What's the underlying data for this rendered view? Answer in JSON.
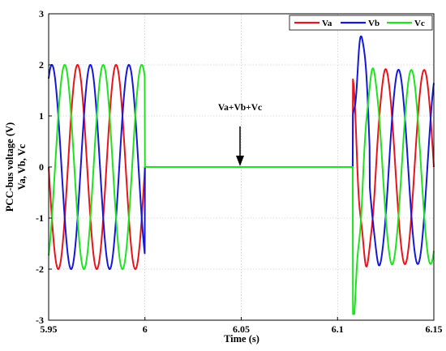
{
  "chart_data": {
    "type": "line",
    "xlabel": "Time (s)",
    "ylabel_lines": [
      "PCC-bus voltage (V)",
      "Va, Vb, Vc"
    ],
    "xlim": [
      5.95,
      6.15
    ],
    "ylim": [
      -3,
      3
    ],
    "xticks": [
      "5.95",
      "6",
      "6.05",
      "6.1",
      "6.15"
    ],
    "yticks": [
      "-3",
      "-2",
      "-1",
      "0",
      "1",
      "2",
      "3"
    ],
    "legend_position": "top-right",
    "annotation": {
      "text": "Va+Vb+Vc",
      "arrow_to": [
        6.05,
        0
      ]
    },
    "signal": {
      "frequency_hz": 50,
      "amplitude_pre_fault": 2.0,
      "amplitude_post_fault": 1.9,
      "interruption_start_s": 6.0,
      "interruption_end_s": 6.108,
      "transient_peaks": {
        "Va": 2.35,
        "Vb": 2.1,
        "Vc_min": -2.85
      }
    },
    "series": [
      {
        "name": "Va",
        "color": "#e8141b",
        "phase_deg": 0
      },
      {
        "name": "Vb",
        "color": "#1419d8",
        "phase_deg": -120
      },
      {
        "name": "Vc",
        "color": "#1fe31f",
        "phase_deg": 120
      }
    ]
  }
}
